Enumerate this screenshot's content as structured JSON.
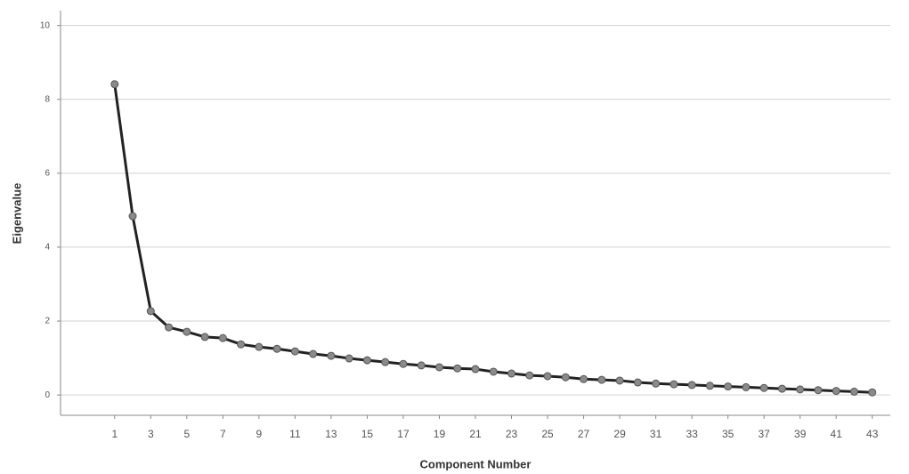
{
  "chart_data": {
    "type": "line",
    "x_label": "Component Number",
    "y_label": "Eigenvalue",
    "x": [
      1,
      2,
      3,
      4,
      5,
      6,
      7,
      8,
      9,
      10,
      11,
      12,
      13,
      14,
      15,
      16,
      17,
      18,
      19,
      20,
      21,
      22,
      23,
      24,
      25,
      26,
      27,
      28,
      29,
      30,
      31,
      32,
      33,
      34,
      35,
      36,
      37,
      38,
      39,
      40,
      41,
      42,
      43
    ],
    "series": [
      {
        "color": "#222222",
        "marker_color": "#8a8a8a",
        "values": [
          8.41,
          4.84,
          2.27,
          1.83,
          1.71,
          1.57,
          1.54,
          1.37,
          1.3,
          1.25,
          1.18,
          1.11,
          1.06,
          0.99,
          0.94,
          0.89,
          0.84,
          0.8,
          0.75,
          0.72,
          0.7,
          0.63,
          0.58,
          0.53,
          0.51,
          0.48,
          0.43,
          0.41,
          0.39,
          0.34,
          0.31,
          0.29,
          0.27,
          0.25,
          0.23,
          0.21,
          0.19,
          0.17,
          0.15,
          0.13,
          0.11,
          0.09,
          0.07
        ]
      }
    ],
    "xlim": [
      -2,
      44
    ],
    "xticks": [
      1,
      3,
      5,
      7,
      9,
      11,
      13,
      15,
      17,
      19,
      21,
      23,
      25,
      27,
      29,
      31,
      33,
      35,
      37,
      39,
      41,
      43
    ],
    "ylim": [
      -0.55,
      10.4
    ],
    "yticks": [
      0,
      2,
      4,
      6,
      8,
      10
    ],
    "grid": true
  }
}
